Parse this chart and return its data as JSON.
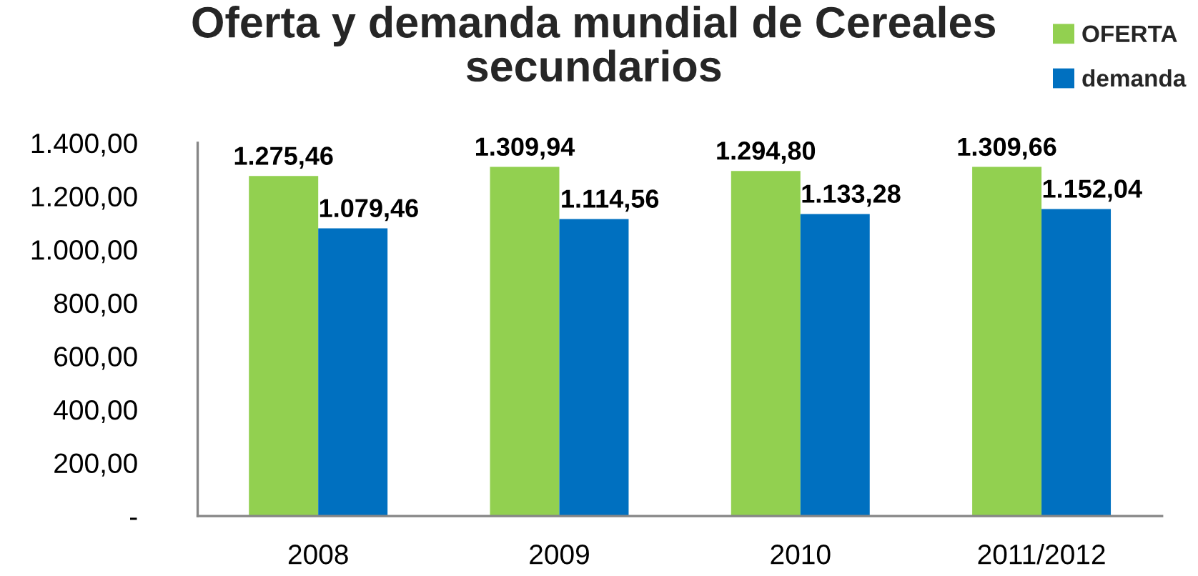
{
  "chart_data": {
    "type": "bar",
    "title": "Oferta y demanda mundial de Cereales secundarios",
    "categories": [
      "2008",
      "2009",
      "2010",
      "2011/2012"
    ],
    "series": [
      {
        "name": "OFERTA",
        "color": "#92d050",
        "values": [
          1275.46,
          1309.94,
          1294.8,
          1309.66
        ],
        "value_labels": [
          "1.275,46",
          "1.309,94",
          "1.294,80",
          "1.309,66"
        ]
      },
      {
        "name": "demanda",
        "color": "#0070c0",
        "values": [
          1079.46,
          1114.56,
          1133.28,
          1152.04
        ],
        "value_labels": [
          "1.079,46",
          "1.114,56",
          "1.133,28",
          "1.152,04"
        ]
      }
    ],
    "ylim": [
      0,
      1400
    ],
    "yticks": [
      {
        "value": 0,
        "label": "-"
      },
      {
        "value": 200,
        "label": "200,00"
      },
      {
        "value": 400,
        "label": "400,00"
      },
      {
        "value": 600,
        "label": "600,00"
      },
      {
        "value": 800,
        "label": "800,00"
      },
      {
        "value": 1000,
        "label": "1.000,00"
      },
      {
        "value": 1200,
        "label": "1.200,00"
      },
      {
        "value": 1400,
        "label": "1.400,00"
      }
    ],
    "grid": false,
    "legend": "top right"
  }
}
